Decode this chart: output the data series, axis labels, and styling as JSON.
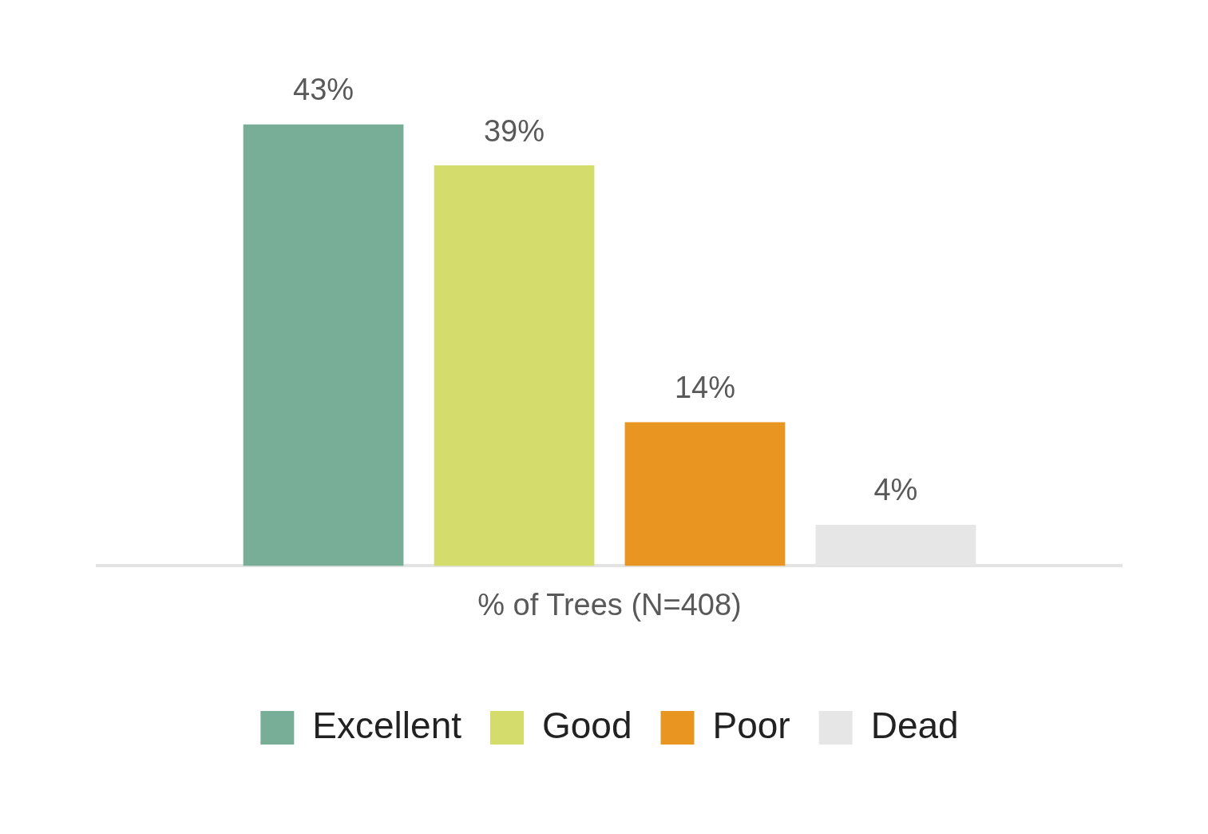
{
  "chart_data": {
    "type": "bar",
    "xlabel": "% of Trees (N=408)",
    "categories": [
      null
    ],
    "legend": "bottom",
    "grid": false,
    "series": [
      {
        "name": "Excellent",
        "color": "#78ad98",
        "values": [
          43
        ],
        "value_labels": [
          "43%"
        ]
      },
      {
        "name": "Good",
        "color": "#d4dd6b",
        "values": [
          39
        ],
        "value_labels": [
          "39%"
        ]
      },
      {
        "name": "Poor",
        "color": "#e89522",
        "values": [
          14
        ],
        "value_labels": [
          "14%"
        ]
      },
      {
        "name": "Dead",
        "color": "#e6e6e6",
        "values": [
          4
        ],
        "value_labels": [
          "4%"
        ]
      }
    ]
  }
}
